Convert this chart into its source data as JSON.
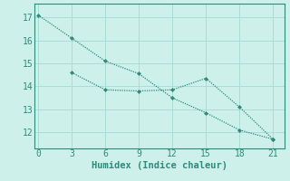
{
  "line1_x": [
    0,
    3,
    6,
    9,
    12,
    15,
    18,
    21
  ],
  "line1_y": [
    17.1,
    16.1,
    15.1,
    14.55,
    13.5,
    12.85,
    12.1,
    11.7
  ],
  "line2_x": [
    3,
    6,
    9,
    12,
    15,
    18,
    21
  ],
  "line2_y": [
    14.6,
    13.85,
    13.8,
    13.85,
    14.35,
    13.1,
    11.7
  ],
  "line_color": "#2e8b7a",
  "bg_color": "#cef0eb",
  "grid_color": "#aaddd6",
  "axis_color": "#2e8b7a",
  "xlabel": "Humidex (Indice chaleur)",
  "xticks": [
    0,
    3,
    6,
    9,
    12,
    15,
    18,
    21
  ],
  "yticks": [
    12,
    13,
    14,
    15,
    16,
    17
  ],
  "xlim": [
    -0.3,
    22
  ],
  "ylim": [
    11.3,
    17.6
  ],
  "markersize": 2.5,
  "linewidth": 0.9,
  "xlabel_fontsize": 7.5,
  "tick_fontsize": 7
}
